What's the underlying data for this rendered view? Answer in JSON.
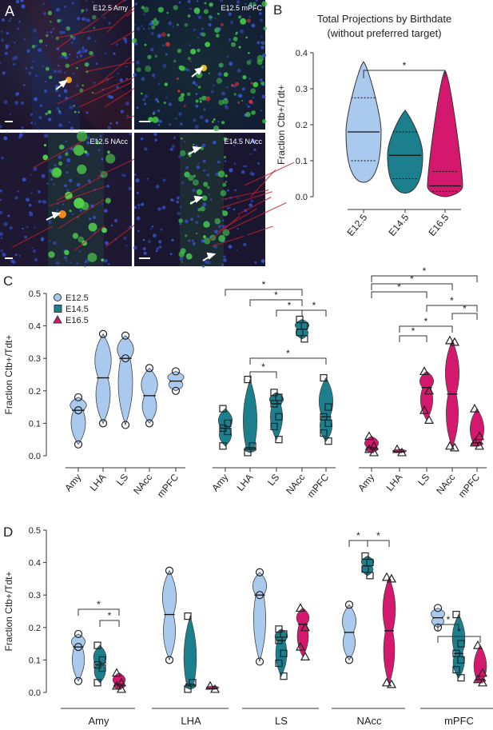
{
  "panel_letters": [
    "A",
    "B",
    "C",
    "D"
  ],
  "micrographs": [
    {
      "label": "E12.5 Amy"
    },
    {
      "label": "E12.5 mPFC"
    },
    {
      "label": "E12.5 NAcc"
    },
    {
      "label": "E14.5 NAcc"
    }
  ],
  "colors": {
    "e12": "#a9c9ee",
    "e14": "#1b7f8e",
    "e16": "#d4186d",
    "outline": "#333333"
  },
  "chart_data": [
    {
      "type": "violin",
      "panel": "B",
      "title": "Total Projections by Birthdate",
      "subtitle": "(without preferred target)",
      "ylabel": "Fraction Ctb+/Tdt+",
      "ylim": [
        0,
        0.4
      ],
      "yticks": [
        "0.0",
        "0.1",
        "0.2",
        "0.3",
        "0.4"
      ],
      "categories": [
        "E12.5",
        "E14.5",
        "E16.5"
      ],
      "series": [
        {
          "name": "E12.5",
          "median": 0.18,
          "q1": 0.1,
          "q3": 0.275,
          "min": 0.04,
          "max": 0.375
        },
        {
          "name": "E14.5",
          "median": 0.115,
          "q1": 0.05,
          "q3": 0.18,
          "min": 0.01,
          "max": 0.24
        },
        {
          "name": "E16.5",
          "median": 0.03,
          "q1": 0.015,
          "q3": 0.07,
          "min": 0.0,
          "max": 0.35
        }
      ],
      "significance": [
        [
          "E12.5",
          "E16.5"
        ]
      ],
      "sig_symbol": "*"
    },
    {
      "type": "violin",
      "panel": "C",
      "ylabel": "Fraction Ctb+/Tdt+",
      "ylim": [
        0,
        0.5
      ],
      "yticks": [
        "0.0",
        "0.1",
        "0.2",
        "0.3",
        "0.4",
        "0.5"
      ],
      "legend": [
        "E12.5",
        "E14.5",
        "E16.5"
      ],
      "regions": [
        "Amy",
        "LHA",
        "LS",
        "NAcc",
        "mPFC"
      ],
      "groups": [
        {
          "name": "E12.5",
          "points": {
            "Amy": [
              0.18,
              0.14,
              0.035
            ],
            "LHA": [
              0.375,
              0.1
            ],
            "LS": [
              0.37,
              0.3,
              0.095
            ],
            "NAcc": [
              0.27,
              0.1
            ],
            "mPFC": [
              0.26,
              0.2
            ]
          },
          "median": {
            "Amy": 0.14,
            "LHA": 0.24,
            "LS": 0.3,
            "NAcc": 0.185,
            "mPFC": 0.23
          }
        },
        {
          "name": "E14.5",
          "points": {
            "Amy": [
              0.145,
              0.1,
              0.085,
              0.075,
              0.03
            ],
            "LHA": [
              0.235,
              0.03,
              0.01
            ],
            "LS": [
              0.195,
              0.18,
              0.16,
              0.12,
              0.09,
              0.05
            ],
            "NAcc": [
              0.42,
              0.4,
              0.38,
              0.36
            ],
            "mPFC": [
              0.24,
              0.15,
              0.12,
              0.1,
              0.07,
              0.045
            ]
          },
          "median": {
            "Amy": 0.085,
            "LHA": 0.025,
            "LS": 0.16,
            "NAcc": 0.39,
            "mPFC": 0.12
          }
        },
        {
          "name": "E16.5",
          "points": {
            "Amy": [
              0.06,
              0.03,
              0.02,
              0.01
            ],
            "LHA": [
              0.02,
              0.01
            ],
            "LS": [
              0.26,
              0.2,
              0.14,
              0.11
            ],
            "NAcc": [
              0.355,
              0.35,
              0.03,
              0.025
            ],
            "mPFC": [
              0.145,
              0.06,
              0.04,
              0.03
            ]
          },
          "median": {
            "Amy": 0.025,
            "LHA": 0.012,
            "LS": 0.21,
            "NAcc": 0.19,
            "mPFC": 0.04
          }
        }
      ],
      "sig_symbol": "*"
    },
    {
      "type": "violin",
      "panel": "D",
      "ylabel": "Fraction Ctb+/Tdt+",
      "ylim": [
        0,
        0.5
      ],
      "yticks": [
        "0.0",
        "0.1",
        "0.2",
        "0.3",
        "0.4",
        "0.5"
      ],
      "regions": [
        "Amy",
        "LHA",
        "LS",
        "NAcc",
        "mPFC"
      ],
      "sig_symbol": "*"
    }
  ]
}
